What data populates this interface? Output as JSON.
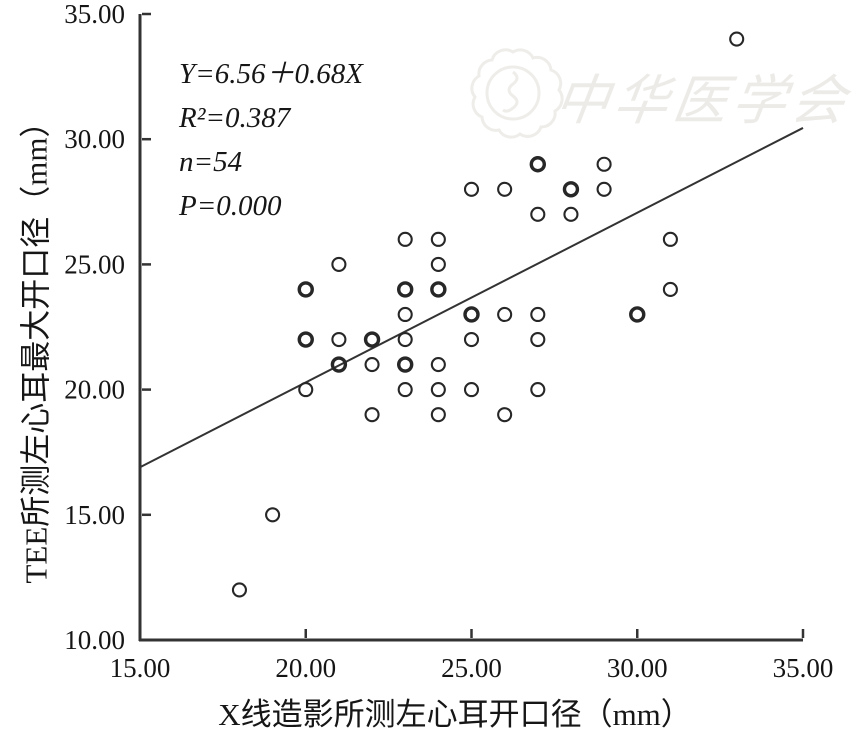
{
  "colors": {
    "axis": "#333333",
    "marker": "#272727",
    "regression_line": "#333333",
    "text": "#151515",
    "watermark": "#ecebe8",
    "background": "#ffffff"
  },
  "watermark": {
    "text": "中华医学会"
  },
  "annotation": {
    "lines": [
      "Y=6.56＋0.68X",
      "R²=0.387",
      "n=54",
      "P=0.000"
    ]
  },
  "chart_data": {
    "type": "scatter",
    "title": "",
    "xlabel": "X线造影所测左心耳开口径（mm）",
    "ylabel": "TEE所测左心耳最大开口径（mm）",
    "xlim": [
      15,
      35
    ],
    "ylim": [
      10,
      35
    ],
    "xticks": [
      15,
      20,
      25,
      30,
      35
    ],
    "yticks": [
      10,
      15,
      20,
      25,
      30,
      35
    ],
    "tick_decimals": 2,
    "grid": false,
    "legend": "none",
    "marker": "open-circle",
    "marker_note": "double=true means two overlapping observations drawn as one bolder circle; total n = 54",
    "regression": {
      "equation": "Y=6.56+0.68X",
      "r_squared": 0.387,
      "n": 54,
      "p": "0.000",
      "line": {
        "x1": 15,
        "y1": 16.9,
        "x2": 35,
        "y2": 30.45
      }
    },
    "points": [
      {
        "x": 18,
        "y": 12
      },
      {
        "x": 19,
        "y": 15
      },
      {
        "x": 22,
        "y": 19
      },
      {
        "x": 24,
        "y": 19
      },
      {
        "x": 26,
        "y": 19
      },
      {
        "x": 20,
        "y": 20
      },
      {
        "x": 23,
        "y": 20
      },
      {
        "x": 24,
        "y": 20
      },
      {
        "x": 25,
        "y": 20
      },
      {
        "x": 27,
        "y": 20
      },
      {
        "x": 21,
        "y": 21,
        "double": true
      },
      {
        "x": 22,
        "y": 21
      },
      {
        "x": 23,
        "y": 21,
        "double": true
      },
      {
        "x": 24,
        "y": 21
      },
      {
        "x": 20,
        "y": 22,
        "double": true
      },
      {
        "x": 21,
        "y": 22
      },
      {
        "x": 22,
        "y": 22,
        "double": true
      },
      {
        "x": 23,
        "y": 22
      },
      {
        "x": 25,
        "y": 22
      },
      {
        "x": 27,
        "y": 22
      },
      {
        "x": 23,
        "y": 23
      },
      {
        "x": 25,
        "y": 23,
        "double": true
      },
      {
        "x": 26,
        "y": 23
      },
      {
        "x": 27,
        "y": 23
      },
      {
        "x": 30,
        "y": 23,
        "double": true
      },
      {
        "x": 20,
        "y": 24,
        "double": true
      },
      {
        "x": 23,
        "y": 24,
        "double": true
      },
      {
        "x": 24,
        "y": 24,
        "double": true
      },
      {
        "x": 31,
        "y": 24
      },
      {
        "x": 21,
        "y": 25
      },
      {
        "x": 24,
        "y": 25
      },
      {
        "x": 23,
        "y": 26
      },
      {
        "x": 24,
        "y": 26
      },
      {
        "x": 31,
        "y": 26
      },
      {
        "x": 27,
        "y": 27
      },
      {
        "x": 28,
        "y": 27
      },
      {
        "x": 25,
        "y": 28
      },
      {
        "x": 26,
        "y": 28
      },
      {
        "x": 28,
        "y": 28,
        "double": true
      },
      {
        "x": 29,
        "y": 28
      },
      {
        "x": 27,
        "y": 29,
        "double": true
      },
      {
        "x": 29,
        "y": 29
      },
      {
        "x": 33,
        "y": 34
      }
    ]
  }
}
